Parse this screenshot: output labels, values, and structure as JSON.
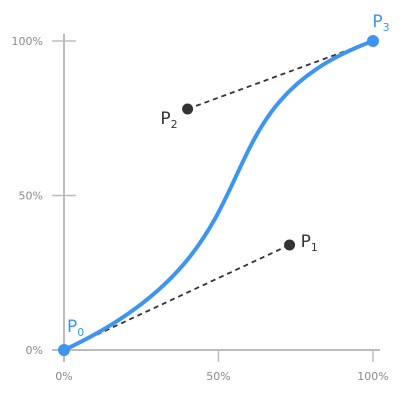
{
  "diagram": {
    "x_axis": {
      "ticks": [
        {
          "value": 0,
          "label": "0%"
        },
        {
          "value": 0.5,
          "label": "50%"
        },
        {
          "value": 1,
          "label": "100%"
        }
      ]
    },
    "y_axis": {
      "ticks": [
        {
          "value": 0,
          "label": "0%"
        },
        {
          "value": 0.5,
          "label": "50%"
        },
        {
          "value": 1,
          "label": "100%"
        }
      ]
    },
    "points": [
      {
        "id": "p0",
        "letter": "P",
        "sub": "0",
        "x": 0,
        "y": 0,
        "color": "#3d95f0"
      },
      {
        "id": "p1",
        "letter": "P",
        "sub": "1",
        "x": 0.73,
        "y": 0.34,
        "color": "#333333"
      },
      {
        "id": "p2",
        "letter": "P",
        "sub": "2",
        "x": 0.4,
        "y": 0.78,
        "color": "#333333"
      },
      {
        "id": "p3",
        "letter": "P",
        "sub": "3",
        "x": 1,
        "y": 1,
        "color": "#3d95f0"
      }
    ],
    "colors": {
      "curve": "#3d95f0",
      "handle": "#333333",
      "axis": "#bdbdbd",
      "tick_text": "#8a8a8a"
    }
  }
}
